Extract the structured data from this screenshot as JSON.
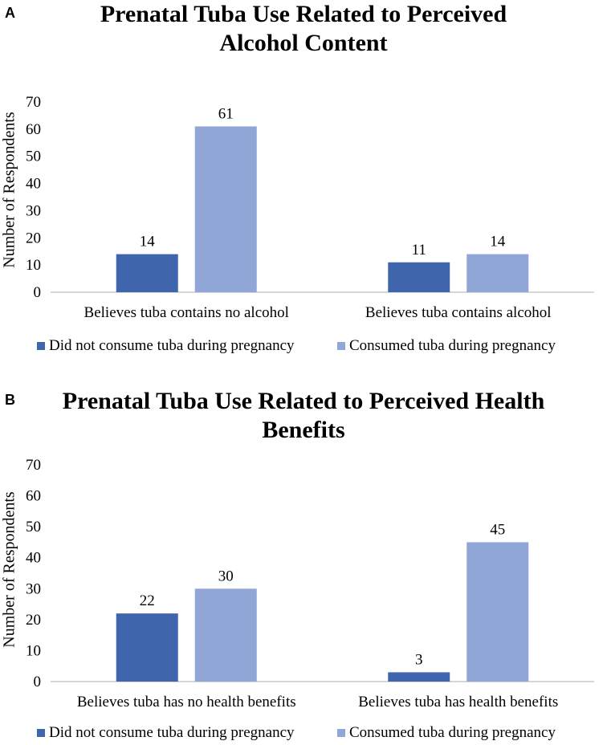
{
  "colors": {
    "did_not": "#3f65ad",
    "consumed": "#8fa6d6",
    "axis": "#c8c8c8",
    "text": "#000000"
  },
  "panels": {
    "a": {
      "letter": "A",
      "title": "Prenatal Tuba Use Related to Perceived Alcohol Content"
    },
    "b": {
      "letter": "B",
      "title": "Prenatal Tuba Use Related to Perceived Health Benefits"
    }
  },
  "chart_data": [
    {
      "type": "bar",
      "title": "Prenatal Tuba Use Related to Perceived Alcohol Content",
      "ylabel": "Number of Respondents",
      "xlabel": "",
      "ylim": [
        0,
        70
      ],
      "yticks": [
        0,
        10,
        20,
        30,
        40,
        50,
        60,
        70
      ],
      "categories": [
        "Believes tuba contains no alcohol",
        "Believes tuba contains alcohol"
      ],
      "series": [
        {
          "name": "Did not consume tuba during pregnancy",
          "values": [
            14,
            11
          ]
        },
        {
          "name": "Consumed tuba during pregnancy",
          "values": [
            61,
            14
          ]
        }
      ],
      "legend": "bottom",
      "data_labels": true
    },
    {
      "type": "bar",
      "title": "Prenatal Tuba Use Related to Perceived Health Benefits",
      "ylabel": "Number of Respondents",
      "xlabel": "",
      "ylim": [
        0,
        70
      ],
      "yticks": [
        0,
        10,
        20,
        30,
        40,
        50,
        60,
        70
      ],
      "categories": [
        "Believes tuba has no health benefits",
        "Believes tuba has health benefits"
      ],
      "series": [
        {
          "name": "Did not consume tuba during pregnancy",
          "values": [
            22,
            3
          ]
        },
        {
          "name": "Consumed tuba during pregnancy",
          "values": [
            30,
            45
          ]
        }
      ],
      "legend": "bottom",
      "data_labels": true
    }
  ]
}
